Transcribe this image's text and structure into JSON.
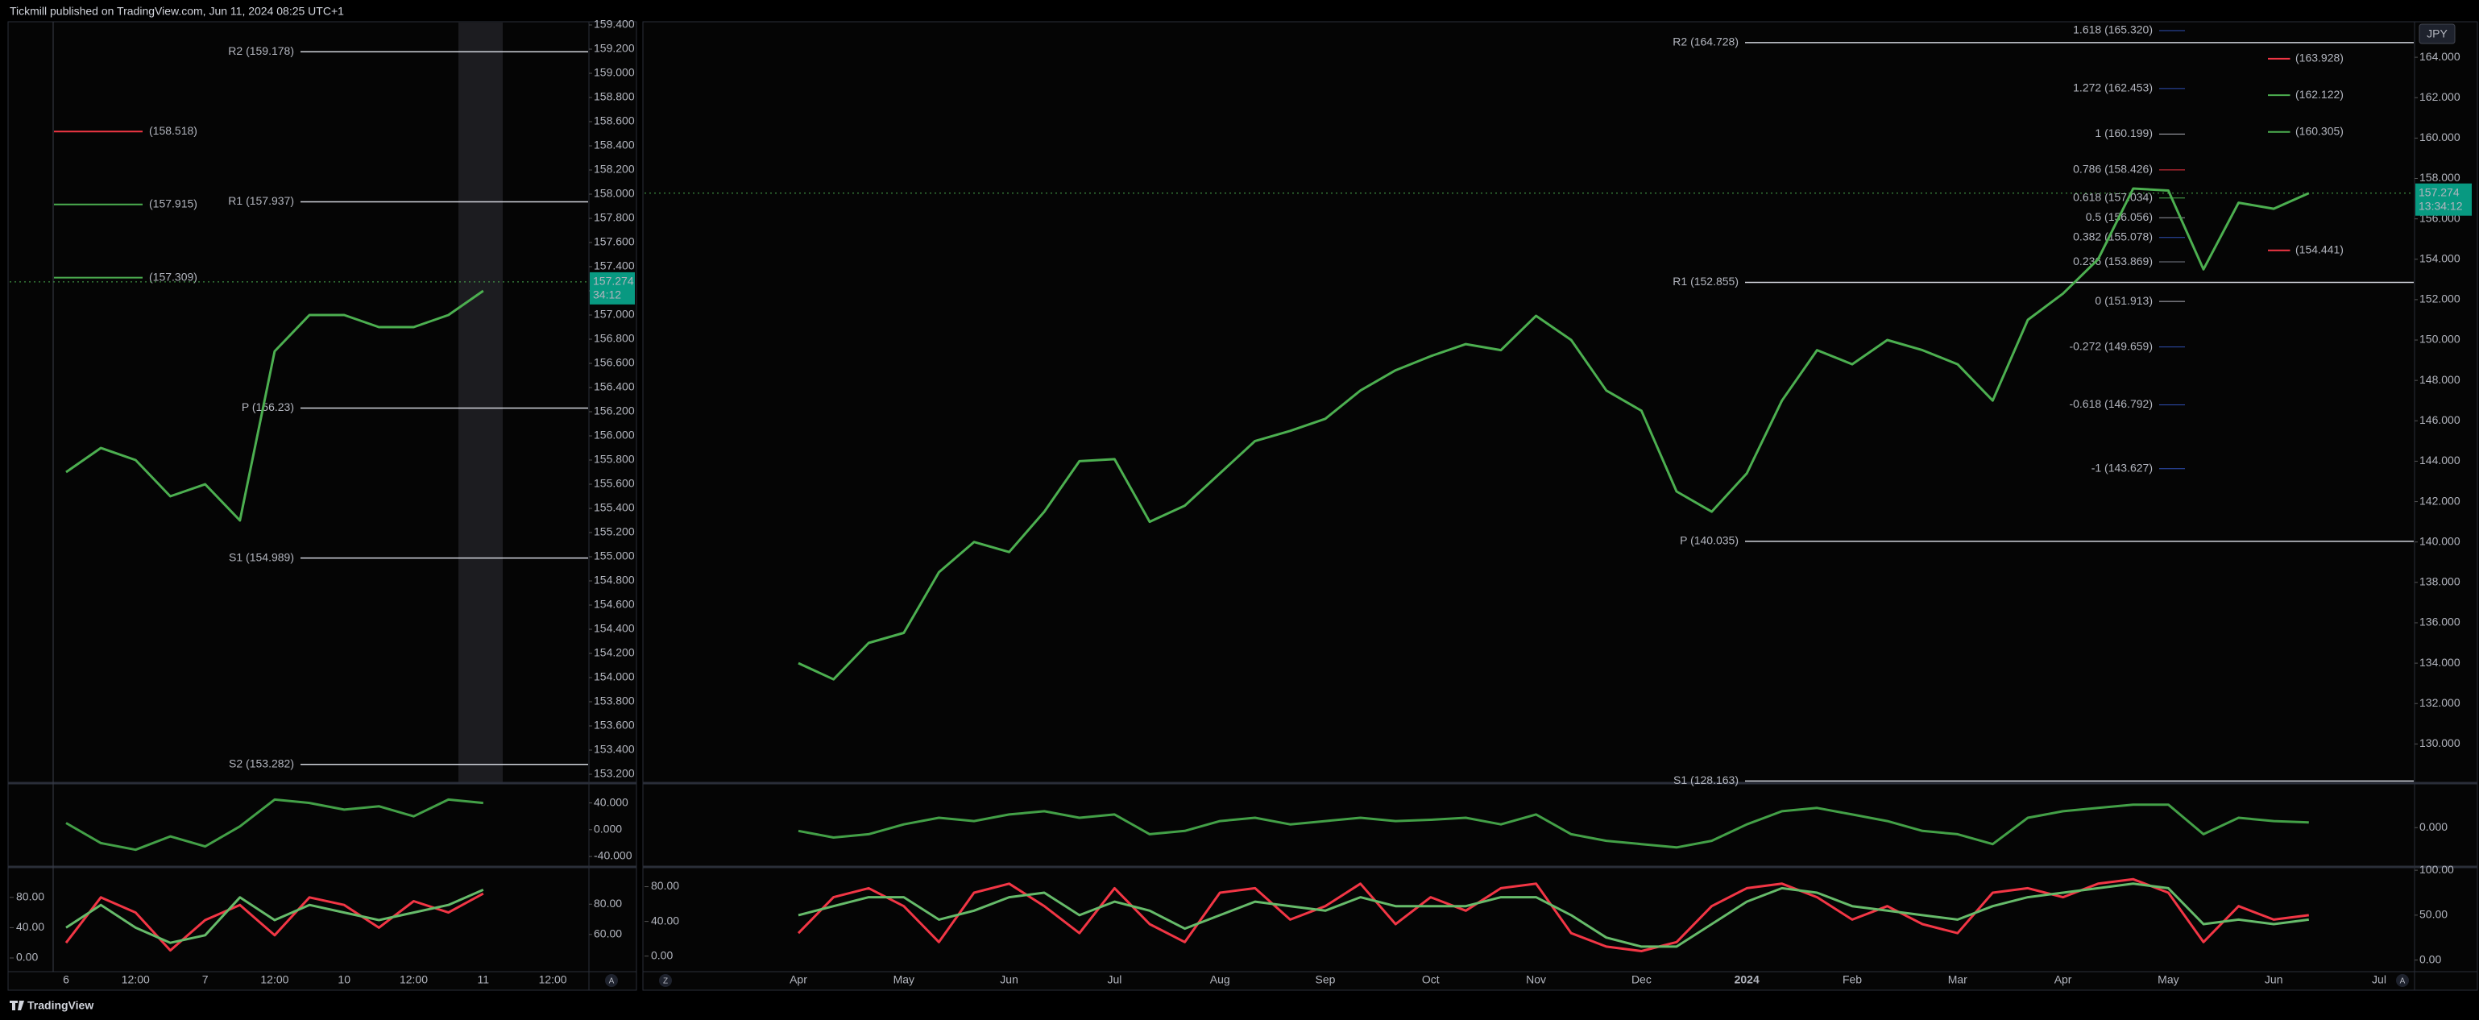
{
  "header": "Tickmill published on TradingView.com, Jun 11, 2024 08:25 UTC+1",
  "footer": "TradingView",
  "currency": "JPY",
  "buttons": [
    "A",
    "Z",
    "A"
  ],
  "chart_data": [
    {
      "type": "line",
      "categories": [
        "6",
        null,
        "12:00",
        null,
        "7",
        null,
        "12:00",
        null,
        "10",
        null,
        "12:00",
        null,
        "11",
        null,
        "12:00"
      ],
      "values": [
        155.7,
        155.9,
        155.8,
        155.5,
        155.6,
        155.3,
        156.7,
        157.0,
        157.0,
        156.9,
        156.9,
        157.0,
        157.2,
        null,
        null
      ],
      "color": "#4caf50",
      "ylim": [
        153.2,
        159.4
      ],
      "yticks": [
        {
          "value": 153.2,
          "label": "153.200"
        },
        {
          "value": 153.4,
          "label": "153.400"
        },
        {
          "value": 153.6,
          "label": "153.600"
        },
        {
          "value": 153.8,
          "label": "153.800"
        },
        {
          "value": 154,
          "label": "154.000"
        },
        {
          "value": 154.2,
          "label": "154.200"
        },
        {
          "value": 154.4,
          "label": "154.400"
        },
        {
          "value": 154.6,
          "label": "154.600"
        },
        {
          "value": 154.8,
          "label": "154.800"
        },
        {
          "value": 155,
          "label": "155.000"
        },
        {
          "value": 155.2,
          "label": "155.200"
        },
        {
          "value": 155.4,
          "label": "155.400"
        },
        {
          "value": 155.6,
          "label": "155.600"
        },
        {
          "value": 155.8,
          "label": "155.800"
        },
        {
          "value": 156,
          "label": "156.000"
        },
        {
          "value": 156.2,
          "label": "156.200"
        },
        {
          "value": 156.4,
          "label": "156.400"
        },
        {
          "value": 156.6,
          "label": "156.600"
        },
        {
          "value": 156.8,
          "label": "156.800"
        },
        {
          "value": 157,
          "label": "157.000"
        },
        {
          "value": 157.2,
          "label": "157.200"
        },
        {
          "value": 157.4,
          "label": "157.400"
        },
        {
          "value": 157.6,
          "label": "157.600"
        },
        {
          "value": 157.8,
          "label": "157.800"
        },
        {
          "value": 158,
          "label": "158.000"
        },
        {
          "value": 158.2,
          "label": "158.200"
        },
        {
          "value": 158.4,
          "label": "158.400"
        },
        {
          "value": 158.6,
          "label": "158.600"
        },
        {
          "value": 158.8,
          "label": "158.800"
        },
        {
          "value": 159,
          "label": "159.000"
        },
        {
          "value": 159.2,
          "label": "159.200"
        },
        {
          "value": 159.4,
          "label": "159.400"
        }
      ],
      "grid": false,
      "pivot_levels": [
        {
          "label": "R2 (159.178)",
          "value": 159.178,
          "color": "#b2b5be"
        },
        {
          "label": "R1 (157.937)",
          "value": 157.937,
          "color": "#b2b5be"
        },
        {
          "label": "P (156.23)",
          "value": 156.23,
          "color": "#b2b5be"
        },
        {
          "label": "S1 (154.989)",
          "value": 154.989,
          "color": "#b2b5be"
        },
        {
          "label": "S2 (153.282)",
          "value": 153.282,
          "color": "#b2b5be"
        }
      ],
      "target_levels": [
        {
          "label": "(158.518)",
          "value": 158.518,
          "color": "#f23645"
        },
        {
          "label": "(157.915)",
          "value": 157.915,
          "color": "#4caf50"
        },
        {
          "label": "(157.309)",
          "value": 157.309,
          "color": "#4caf50"
        }
      ],
      "last_price": 157.274,
      "countdown": "34:12"
    },
    {
      "type": "line",
      "values": [
        10,
        -20,
        -30,
        -10,
        -25,
        5,
        45,
        40,
        30,
        35,
        20,
        45,
        40,
        null,
        null
      ],
      "color": "#43a047",
      "ylim": [
        -52,
        66
      ],
      "yticks": [
        {
          "value": 40,
          "label": "40.000"
        },
        {
          "value": 0,
          "label": "0.000"
        },
        {
          "value": -40,
          "label": "-40.000"
        }
      ]
    },
    {
      "type": "line",
      "series": [
        {
          "color": "#f23645",
          "axis": "y2",
          "values": [
            20,
            80,
            60,
            10,
            50,
            70,
            30,
            80,
            70,
            40,
            75,
            60,
            85,
            null,
            null
          ]
        },
        {
          "color": "#66bb6a",
          "axis": "y2",
          "values": [
            40,
            70,
            40,
            20,
            30,
            80,
            50,
            70,
            60,
            50,
            60,
            70,
            90,
            null,
            null
          ]
        }
      ],
      "ylim": [
        36,
        103
      ],
      "yticks": [
        {
          "value": 80,
          "label": "80.00"
        },
        {
          "value": 60,
          "label": "60.00"
        }
      ],
      "y2lim": [
        -17,
        117
      ],
      "y2ticks": [
        {
          "value": 80,
          "label": "80.00"
        },
        {
          "value": 40,
          "label": "40.00"
        },
        {
          "value": 0,
          "label": "0.00"
        }
      ]
    },
    {
      "type": "line",
      "categories": [
        "Apr",
        null,
        null,
        "May",
        null,
        null,
        "Jun",
        null,
        null,
        "Jul",
        null,
        null,
        "Aug",
        null,
        null,
        "Sep",
        null,
        null,
        "Oct",
        null,
        null,
        "Nov",
        null,
        null,
        "Dec",
        null,
        null,
        "2024",
        null,
        null,
        "Feb",
        null,
        null,
        "Mar",
        null,
        null,
        "Apr",
        null,
        null,
        "May",
        null,
        null,
        "Jun",
        null,
        null,
        "Jul"
      ],
      "values": [
        134.0,
        133.2,
        135.0,
        135.5,
        138.5,
        140.0,
        139.5,
        141.5,
        144.0,
        144.1,
        141.0,
        141.8,
        143.4,
        145.0,
        145.5,
        146.1,
        147.5,
        148.5,
        149.2,
        149.8,
        149.5,
        151.2,
        150.0,
        147.5,
        146.5,
        142.5,
        141.5,
        143.4,
        147.0,
        149.5,
        148.8,
        150.0,
        149.5,
        148.8,
        147.0,
        151.0,
        152.3,
        154.0,
        157.5,
        157.4,
        153.5,
        156.8,
        156.5,
        157.27,
        null,
        null
      ],
      "color": "#4caf50",
      "ylim": [
        128.1,
        165.6
      ],
      "yticks": [
        {
          "value": 130,
          "label": "130.000"
        },
        {
          "value": 132,
          "label": "132.000"
        },
        {
          "value": 134,
          "label": "134.000"
        },
        {
          "value": 136,
          "label": "136.000"
        },
        {
          "value": 138,
          "label": "138.000"
        },
        {
          "value": 140,
          "label": "140.000"
        },
        {
          "value": 142,
          "label": "142.000"
        },
        {
          "value": 144,
          "label": "144.000"
        },
        {
          "value": 146,
          "label": "146.000"
        },
        {
          "value": 148,
          "label": "148.000"
        },
        {
          "value": 150,
          "label": "150.000"
        },
        {
          "value": 152,
          "label": "152.000"
        },
        {
          "value": 154,
          "label": "154.000"
        },
        {
          "value": 156,
          "label": "156.000"
        },
        {
          "value": 158,
          "label": "158.000"
        },
        {
          "value": 160,
          "label": "160.000"
        },
        {
          "value": 162,
          "label": "162.000"
        },
        {
          "value": 164,
          "label": "164.000"
        }
      ],
      "grid": false,
      "pivot_levels": [
        {
          "label": "R2 (164.728)",
          "value": 164.728,
          "color": "#b2b5be"
        },
        {
          "label": "R1 (152.855)",
          "value": 152.855,
          "color": "#b2b5be"
        },
        {
          "label": "P (140.035)",
          "value": 140.035,
          "color": "#b2b5be"
        },
        {
          "label": "S1 (128.163)",
          "value": 128.163,
          "color": "#b2b5be"
        }
      ],
      "fib_levels": [
        {
          "label": "1.618 (165.320)",
          "value": 165.32,
          "color": "#2f4fb5"
        },
        {
          "label": "1.272 (162.453)",
          "value": 162.453,
          "color": "#2f4fb5"
        },
        {
          "label": "1 (160.199)",
          "value": 160.199,
          "color": "#b2b5be"
        },
        {
          "label": "0.786 (158.426)",
          "value": 158.426,
          "color": "#f23645"
        },
        {
          "label": "0.618 (157.034)",
          "value": 157.034,
          "color": "#4caf50"
        },
        {
          "label": "0.5 (156.056)",
          "value": 156.056,
          "color": "#9598a1"
        },
        {
          "label": "0.382 (155.078)",
          "value": 155.078,
          "color": "#2f4fb5"
        },
        {
          "label": "0.236 (153.869)",
          "value": 153.869,
          "color": "#787b86"
        },
        {
          "label": "0 (151.913)",
          "value": 151.913,
          "color": "#b2b5be"
        },
        {
          "label": "-0.272 (149.659)",
          "value": 149.659,
          "color": "#2f4fb5"
        },
        {
          "label": "-0.618 (146.792)",
          "value": 146.792,
          "color": "#2f4fb5"
        },
        {
          "label": "-1 (143.627)",
          "value": 143.627,
          "color": "#2f4fb5"
        }
      ],
      "target_levels": [
        {
          "label": "(163.928)",
          "value": 163.928,
          "color": "#f23645"
        },
        {
          "label": "(162.122)",
          "value": 162.122,
          "color": "#4caf50"
        },
        {
          "label": "(160.305)",
          "value": 160.305,
          "color": "#4caf50"
        },
        {
          "label": "(154.441)",
          "value": 154.441,
          "color": "#f23645"
        }
      ],
      "last_price": 157.274,
      "countdown": "13:34:12"
    },
    {
      "type": "line",
      "values": [
        -5,
        -15,
        -10,
        5,
        15,
        10,
        20,
        25,
        15,
        20,
        -10,
        -5,
        10,
        15,
        5,
        10,
        15,
        10,
        12,
        15,
        5,
        20,
        -10,
        -20,
        -25,
        -30,
        -20,
        5,
        25,
        30,
        20,
        10,
        -5,
        -10,
        -25,
        15,
        25,
        30,
        35,
        35,
        -10,
        15,
        10,
        8,
        null,
        null
      ],
      "color": "#43a047",
      "ylim": [
        -56,
        64
      ],
      "yticks": [
        {
          "value": 0,
          "label": "0.000"
        }
      ]
    },
    {
      "type": "line",
      "series": [
        {
          "color": "#f23645",
          "values": [
            30,
            70,
            80,
            60,
            20,
            75,
            85,
            60,
            30,
            80,
            40,
            20,
            75,
            80,
            45,
            60,
            85,
            40,
            70,
            55,
            80,
            85,
            30,
            15,
            10,
            20,
            60,
            80,
            85,
            70,
            45,
            60,
            40,
            30,
            75,
            80,
            70,
            85,
            90,
            75,
            20,
            60,
            45,
            50,
            null,
            null
          ]
        },
        {
          "color": "#66bb6a",
          "values": [
            50,
            60,
            70,
            70,
            45,
            55,
            70,
            75,
            50,
            65,
            55,
            35,
            50,
            65,
            60,
            55,
            70,
            60,
            60,
            60,
            70,
            70,
            50,
            25,
            15,
            15,
            40,
            65,
            80,
            75,
            60,
            55,
            50,
            45,
            60,
            70,
            75,
            80,
            85,
            80,
            40,
            45,
            40,
            45,
            null,
            null
          ]
        }
      ],
      "ylim": [
        -12,
        101
      ],
      "yticks": [
        {
          "value": 100,
          "label": "100.00"
        },
        {
          "value": 50,
          "label": "50.00"
        },
        {
          "value": 0,
          "label": "0.00"
        }
      ],
      "y2lim": [
        -17,
        100
      ],
      "y2ticks": [
        {
          "value": 80,
          "label": "80.00"
        },
        {
          "value": 40,
          "label": "40.00"
        },
        {
          "value": 0,
          "label": "0.00"
        }
      ]
    }
  ]
}
